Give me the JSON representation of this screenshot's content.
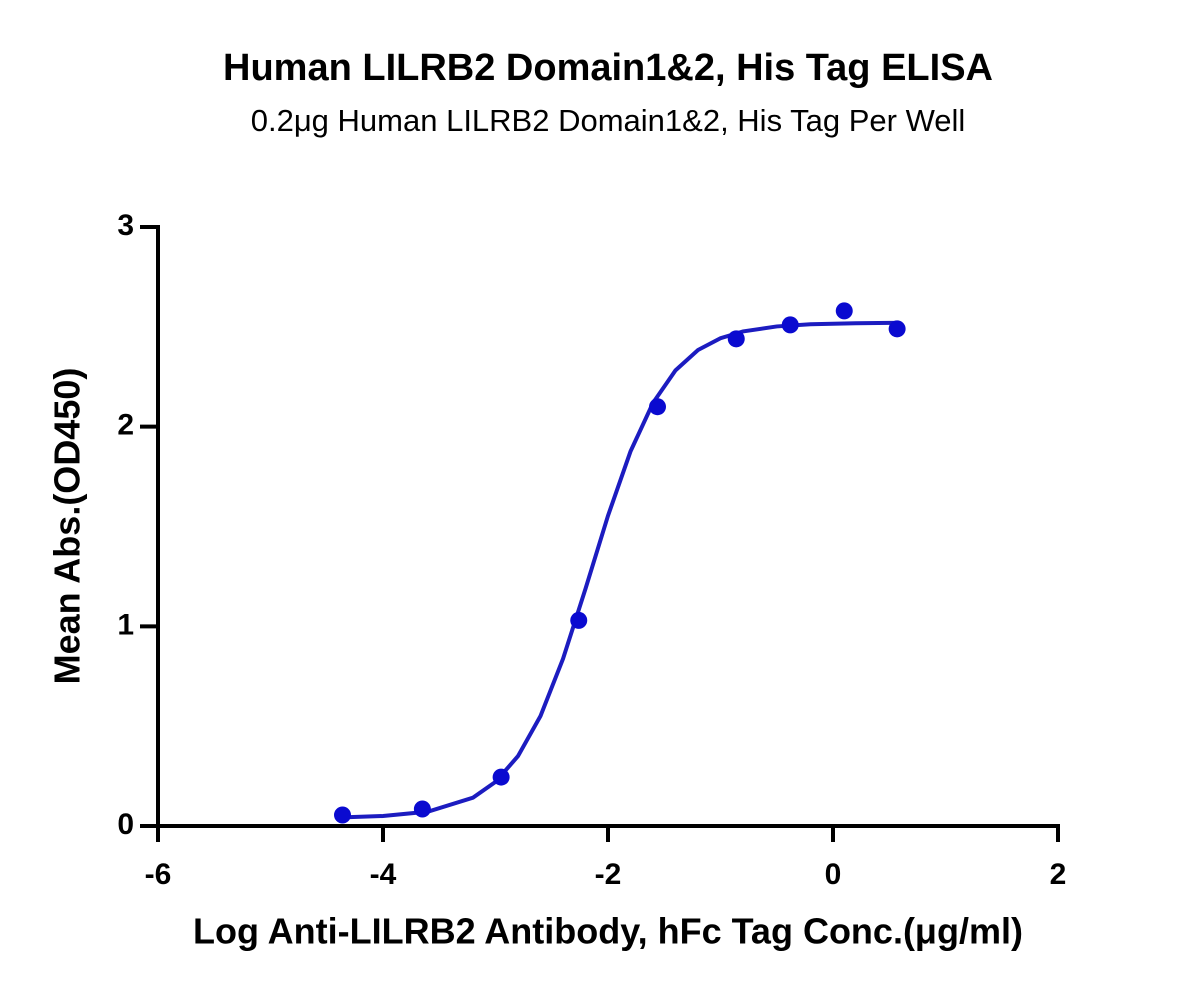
{
  "chart_data": {
    "type": "scatter",
    "title": "Human LILRB2 Domain1&2, His Tag ELISA",
    "subtitle": "0.2μg Human LILRB2 Domain1&2, His Tag Per Well",
    "x_label": "Log Anti-LILRB2 Antibody, hFc Tag Conc.(μg/ml)",
    "y_label": "Mean Abs.(OD450)",
    "xlim": [
      -6,
      2
    ],
    "xticks": [
      -6,
      -4,
      -2,
      0,
      2
    ],
    "ylim": [
      0,
      3
    ],
    "yticks": [
      0,
      1,
      2,
      3
    ],
    "series": [
      {
        "color": "#0a0ad0",
        "x": [
          -4.36,
          -3.65,
          -2.95,
          -2.26,
          -1.56,
          -0.86,
          -0.38,
          0.1,
          0.57
        ],
        "values": [
          0.055,
          0.085,
          0.245,
          1.03,
          2.1,
          2.44,
          2.51,
          2.58,
          2.49
        ]
      }
    ],
    "fit": {
      "color": "#1c1cc0",
      "x": [
        -4.36,
        -4.0,
        -3.6,
        -3.2,
        -3.0,
        -2.8,
        -2.6,
        -2.4,
        -2.2,
        -2.0,
        -1.8,
        -1.6,
        -1.4,
        -1.2,
        -1.0,
        -0.8,
        -0.5,
        -0.2,
        0.2,
        0.57
      ],
      "values": [
        0.043,
        0.05,
        0.072,
        0.142,
        0.221,
        0.35,
        0.551,
        0.837,
        1.188,
        1.554,
        1.876,
        2.119,
        2.282,
        2.384,
        2.443,
        2.477,
        2.502,
        2.513,
        2.518,
        2.52
      ]
    }
  }
}
